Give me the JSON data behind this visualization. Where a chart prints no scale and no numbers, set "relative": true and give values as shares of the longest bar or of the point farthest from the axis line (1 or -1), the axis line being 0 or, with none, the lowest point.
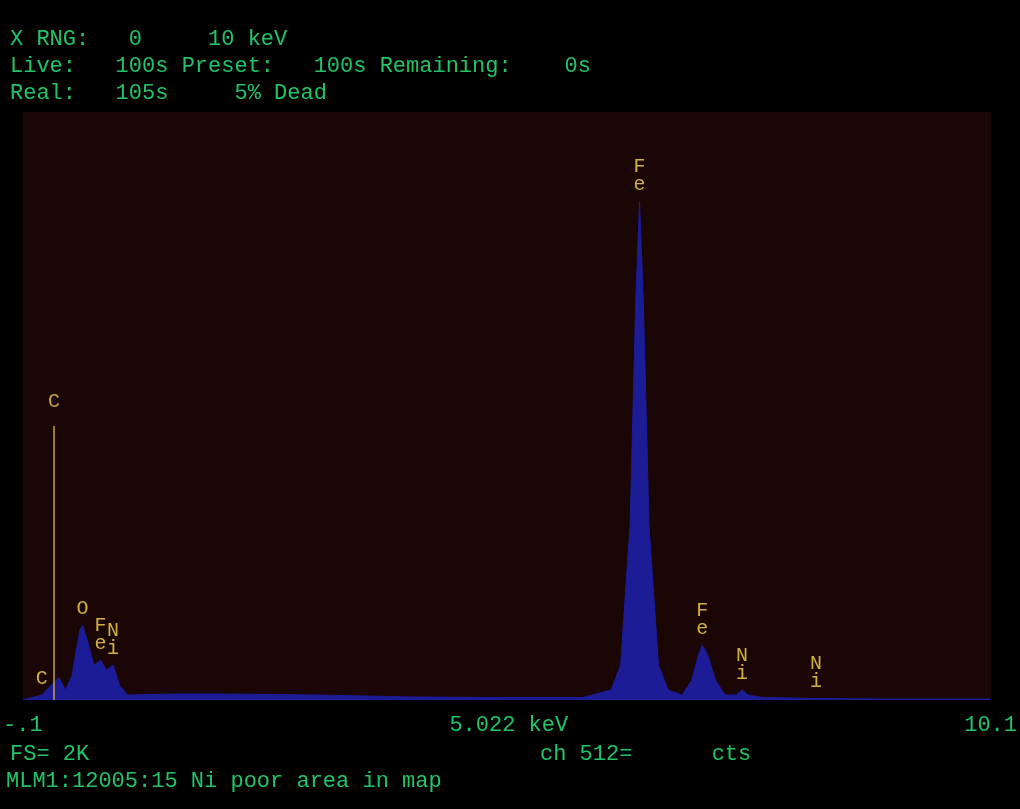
{
  "chart_data": {
    "type": "area",
    "relative": true,
    "color": "#1c1c96",
    "x": [
      -0.1,
      0.0,
      0.1,
      0.2,
      0.28,
      0.35,
      0.42,
      0.5,
      0.53,
      0.58,
      0.65,
      0.72,
      0.78,
      0.85,
      0.92,
      1.0,
      1.5,
      2.0,
      3.0,
      4.0,
      5.0,
      5.8,
      6.1,
      6.2,
      6.3,
      6.36,
      6.4,
      6.44,
      6.5,
      6.6,
      6.7,
      6.85,
      6.95,
      7.02,
      7.06,
      7.12,
      7.2,
      7.3,
      7.42,
      7.48,
      7.55,
      7.7,
      8.26,
      9.0,
      10.1
    ],
    "values": [
      0,
      0.005,
      0.01,
      0.03,
      0.045,
      0.02,
      0.05,
      0.14,
      0.15,
      0.12,
      0.07,
      0.08,
      0.06,
      0.07,
      0.03,
      0.01,
      0.012,
      0.012,
      0.01,
      0.006,
      0.005,
      0.005,
      0.02,
      0.07,
      0.35,
      0.8,
      1,
      0.8,
      0.35,
      0.07,
      0.02,
      0.01,
      0.04,
      0.09,
      0.11,
      0.09,
      0.04,
      0.01,
      0.01,
      0.02,
      0.01,
      0.005,
      0.003,
      0.002,
      0.002
    ],
    "xlim": [
      -0.1,
      10.1
    ],
    "xticks": [
      {
        "value": -0.1,
        "label": "-.1"
      },
      {
        "value": 5.022,
        "label": "5.022 keV"
      },
      {
        "value": 10.1,
        "label": "10.1"
      }
    ],
    "tick_labels": "x",
    "grid": false,
    "ref_lines": [
      {
        "axis": "x",
        "value": 0.23,
        "label": "C",
        "color": "#c8a040"
      }
    ],
    "annotations": [
      "X RNG:   0     10 keV",
      "Live:   100s Preset:   100s Remaining:    0s",
      "Real:   105s     5% Dead",
      "FS= 2K",
      "ch 512=      cts",
      "MLM1:12005:15 Ni poor area in map",
      {
        "text": "C",
        "x": 0.1,
        "y": 0.01
      },
      {
        "text": "O",
        "x": 0.53,
        "y": 0.15
      },
      {
        "text": "Fe",
        "x": 0.72,
        "y": 0.08
      },
      {
        "text": "Ni",
        "x": 0.85,
        "y": 0.07
      },
      {
        "text": "Fe",
        "x": 6.4,
        "y": 1
      },
      {
        "text": "Fe",
        "x": 7.06,
        "y": 0.11
      },
      {
        "text": "Ni",
        "x": 7.48,
        "y": 0.02
      },
      {
        "text": "Ni",
        "x": 8.26,
        "y": 0.003
      }
    ]
  }
}
